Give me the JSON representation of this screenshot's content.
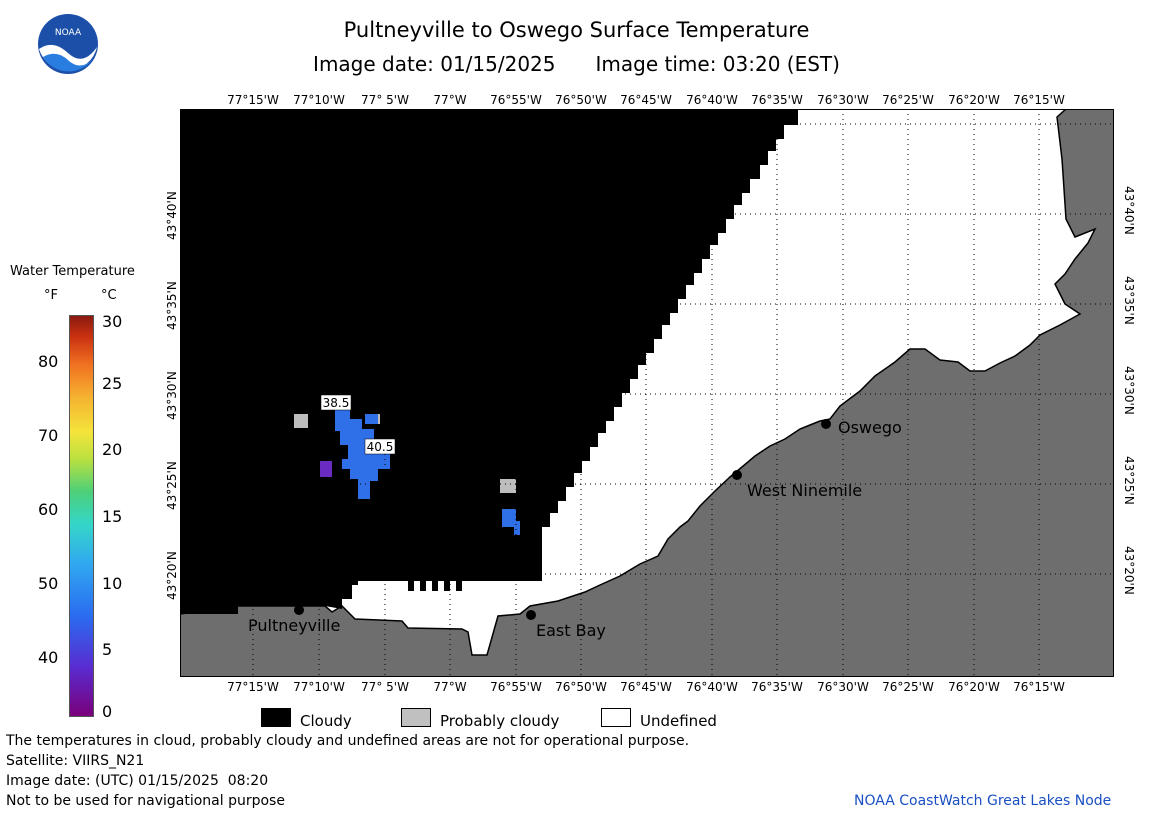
{
  "title": "Pultneyville to Oswego Surface Temperature",
  "image_date_label": "Image date: 01/15/2025",
  "image_time_label": "Image time: 03:20 (EST)",
  "logo": {
    "text": "NOAA"
  },
  "longitude_labels": [
    "77°15'W",
    "77°10'W",
    "77° 5'W",
    "77°W",
    "76°55'W",
    "76°50'W",
    "76°45'W",
    "76°40'W",
    "76°35'W",
    "76°30'W",
    "76°25'W",
    "76°20'W",
    "76°15'W"
  ],
  "latitude_labels": [
    "43°40'N",
    "43°35'N",
    "43°30'N",
    "43°25'N",
    "43°20'N"
  ],
  "places": [
    "Pultneyville",
    "East Bay",
    "West Ninemile",
    "Oswego"
  ],
  "temperature_labels": [
    "38.5",
    "40.5"
  ],
  "colorbar": {
    "title": "Water Temperature",
    "unit_f": "°F",
    "unit_c": "°C",
    "f_ticks": [
      "80",
      "70",
      "60",
      "50",
      "40"
    ],
    "c_ticks": [
      "30",
      "25",
      "20",
      "15",
      "10",
      "5",
      "0"
    ]
  },
  "legend": [
    "Cloudy",
    "Probably cloudy",
    "Undefined"
  ],
  "colors": {
    "cloudy": "#000000",
    "probably_cloudy": "#c0c0c0",
    "undefined": "#ffffff",
    "land": "#6e6e6e",
    "water_blue": "#2f6fe8"
  },
  "footer": {
    "disclaimer": "The temperatures in cloud, probably cloudy and undefined areas are not for operational purpose.",
    "satellite": "Satellite: VIIRS_N21",
    "date_utc": "Image date: (UTC) 01/15/2025  08:20",
    "nav_warning": "Not to be used for navigational purpose",
    "credit": "NOAA CoastWatch Great Lakes Node"
  }
}
